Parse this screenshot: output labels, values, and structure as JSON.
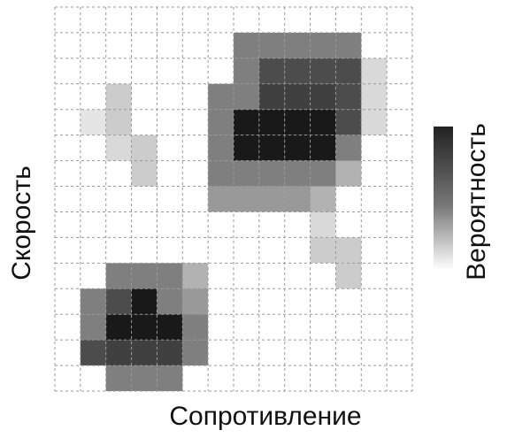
{
  "chart_data": {
    "type": "heatmap",
    "xlabel": "Сопротивление",
    "ylabel": "Скорость",
    "colorbar_label": "Вероятность",
    "color": "#000000",
    "zlim": [
      0,
      1
    ],
    "values": [
      [
        0,
        0,
        0,
        0,
        0,
        0,
        0,
        0,
        0,
        0,
        0,
        0,
        0,
        0
      ],
      [
        0,
        0,
        0,
        0,
        0,
        0,
        0,
        0.5,
        0.5,
        0.5,
        0.5,
        0.5,
        0,
        0
      ],
      [
        0,
        0,
        0,
        0,
        0,
        0,
        0,
        0.5,
        0.7,
        0.7,
        0.7,
        0.7,
        0.15,
        0
      ],
      [
        0,
        0,
        0.2,
        0,
        0,
        0,
        0.5,
        0.5,
        0.75,
        0.75,
        0.75,
        0.7,
        0.15,
        0
      ],
      [
        0,
        0.1,
        0.2,
        0,
        0,
        0,
        0.5,
        0.9,
        0.9,
        0.9,
        0.9,
        0.7,
        0.15,
        0
      ],
      [
        0,
        0,
        0.15,
        0.2,
        0,
        0,
        0.5,
        0.9,
        0.9,
        0.9,
        0.9,
        0.5,
        0,
        0
      ],
      [
        0,
        0,
        0,
        0.2,
        0,
        0,
        0.5,
        0.5,
        0.5,
        0.5,
        0.5,
        0.3,
        0,
        0
      ],
      [
        0,
        0,
        0,
        0,
        0,
        0,
        0.4,
        0.4,
        0.4,
        0.4,
        0.3,
        0,
        0,
        0
      ],
      [
        0,
        0,
        0,
        0,
        0,
        0,
        0,
        0,
        0,
        0,
        0.15,
        0,
        0,
        0
      ],
      [
        0,
        0,
        0,
        0,
        0,
        0,
        0,
        0,
        0,
        0,
        0.2,
        0.2,
        0,
        0
      ],
      [
        0,
        0,
        0.5,
        0.5,
        0.5,
        0.3,
        0,
        0,
        0,
        0,
        0,
        0.2,
        0,
        0
      ],
      [
        0,
        0.5,
        0.7,
        0.9,
        0.5,
        0.4,
        0,
        0,
        0,
        0,
        0,
        0,
        0,
        0
      ],
      [
        0,
        0.5,
        0.9,
        0.9,
        0.9,
        0.5,
        0,
        0,
        0,
        0,
        0,
        0,
        0,
        0
      ],
      [
        0,
        0.7,
        0.75,
        0.75,
        0.75,
        0.5,
        0,
        0,
        0,
        0,
        0,
        0,
        0,
        0
      ],
      [
        0,
        0,
        0.5,
        0.5,
        0.5,
        0,
        0,
        0,
        0,
        0,
        0,
        0,
        0,
        0
      ]
    ]
  }
}
